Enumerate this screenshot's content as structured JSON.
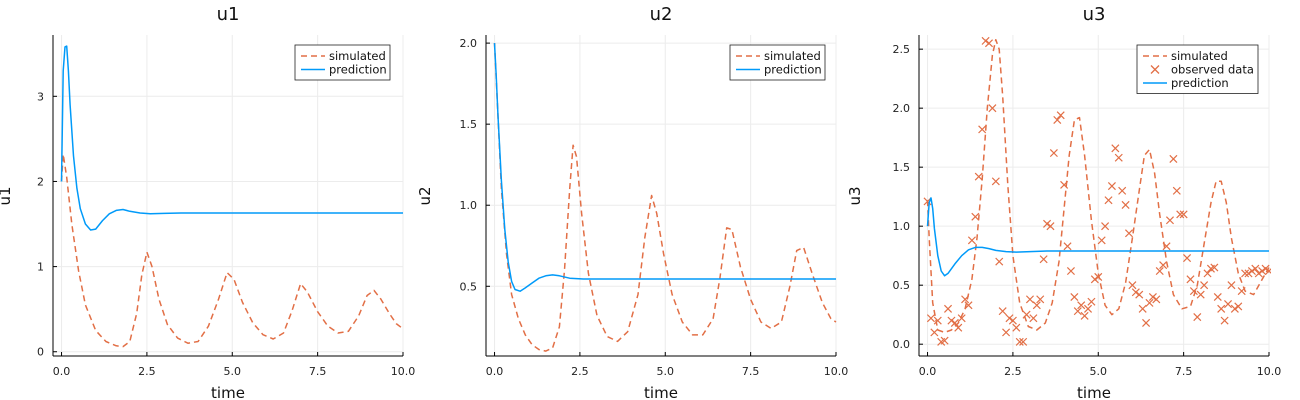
{
  "colors": {
    "simulated": "#e26f46",
    "prediction": "#009af9",
    "observed": "#e26f46",
    "grid": "#ececec",
    "axis": "#000000"
  },
  "chart_data": [
    {
      "type": "line",
      "title": "u1",
      "xlabel": "time",
      "ylabel": "u1",
      "xlim": [
        -0.25,
        10.0
      ],
      "ylim": [
        -0.05,
        3.72
      ],
      "xticks": [
        0.0,
        2.5,
        5.0,
        7.5,
        10.0
      ],
      "xtick_labels": [
        "0.0",
        "2.5",
        "5.0",
        "7.5",
        "10.0"
      ],
      "yticks": [
        0,
        1,
        2,
        3
      ],
      "ytick_labels": [
        "0",
        "1",
        "2",
        "3"
      ],
      "grid": true,
      "legend": "top-right",
      "legend_entries": [
        "simulated",
        "prediction"
      ],
      "series": [
        {
          "name": "simulated",
          "style": "dashed",
          "x": [
            0.0,
            0.05,
            0.15,
            0.3,
            0.5,
            0.7,
            1.0,
            1.3,
            1.6,
            1.8,
            2.0,
            2.2,
            2.35,
            2.5,
            2.65,
            2.85,
            3.1,
            3.4,
            3.7,
            4.0,
            4.3,
            4.6,
            4.85,
            5.05,
            5.3,
            5.6,
            5.9,
            6.2,
            6.5,
            6.75,
            7.0,
            7.2,
            7.5,
            7.8,
            8.1,
            8.4,
            8.7,
            8.95,
            9.15,
            9.35,
            9.6,
            9.8,
            10.0
          ],
          "y": [
            2.0,
            2.32,
            2.05,
            1.5,
            0.95,
            0.55,
            0.25,
            0.12,
            0.07,
            0.06,
            0.12,
            0.45,
            0.9,
            1.17,
            1.0,
            0.62,
            0.32,
            0.16,
            0.1,
            0.12,
            0.3,
            0.62,
            0.93,
            0.85,
            0.58,
            0.34,
            0.2,
            0.15,
            0.22,
            0.48,
            0.8,
            0.7,
            0.47,
            0.3,
            0.22,
            0.24,
            0.42,
            0.66,
            0.72,
            0.62,
            0.45,
            0.33,
            0.27
          ]
        },
        {
          "name": "prediction",
          "style": "solid",
          "x": [
            0.0,
            0.05,
            0.1,
            0.15,
            0.2,
            0.25,
            0.35,
            0.45,
            0.55,
            0.7,
            0.85,
            1.0,
            1.2,
            1.4,
            1.6,
            1.8,
            2.0,
            2.3,
            2.6,
            3.0,
            3.5,
            4.0,
            5.0,
            6.0,
            7.0,
            8.0,
            9.0,
            10.0
          ],
          "y": [
            2.0,
            3.3,
            3.58,
            3.59,
            3.3,
            2.9,
            2.3,
            1.92,
            1.68,
            1.5,
            1.43,
            1.44,
            1.54,
            1.62,
            1.66,
            1.67,
            1.65,
            1.63,
            1.62,
            1.625,
            1.63,
            1.63,
            1.63,
            1.63,
            1.63,
            1.63,
            1.63,
            1.63
          ]
        }
      ]
    },
    {
      "type": "line",
      "title": "u2",
      "xlabel": "time",
      "ylabel": "u2",
      "xlim": [
        -0.25,
        10.0
      ],
      "ylim": [
        0.07,
        2.05
      ],
      "xticks": [
        0.0,
        2.5,
        5.0,
        7.5,
        10.0
      ],
      "xtick_labels": [
        "0.0",
        "2.5",
        "5.0",
        "7.5",
        "10.0"
      ],
      "yticks": [
        0.5,
        1.0,
        1.5,
        2.0
      ],
      "ytick_labels": [
        "0.5",
        "1.0",
        "1.5",
        "2.0"
      ],
      "grid": true,
      "legend": "top-right",
      "legend_entries": [
        "simulated",
        "prediction"
      ],
      "series": [
        {
          "name": "simulated",
          "style": "dashed",
          "x": [
            0.0,
            0.1,
            0.2,
            0.35,
            0.5,
            0.7,
            0.9,
            1.1,
            1.3,
            1.5,
            1.7,
            1.9,
            2.05,
            2.2,
            2.3,
            2.4,
            2.55,
            2.75,
            3.0,
            3.3,
            3.6,
            3.9,
            4.2,
            4.4,
            4.6,
            4.75,
            4.95,
            5.2,
            5.5,
            5.8,
            6.1,
            6.4,
            6.6,
            6.8,
            6.95,
            7.2,
            7.5,
            7.8,
            8.1,
            8.4,
            8.65,
            8.85,
            9.05,
            9.3,
            9.6,
            9.85,
            10.0
          ],
          "y": [
            2.0,
            1.55,
            1.1,
            0.7,
            0.45,
            0.3,
            0.2,
            0.14,
            0.11,
            0.1,
            0.12,
            0.25,
            0.6,
            1.1,
            1.37,
            1.3,
            0.95,
            0.58,
            0.32,
            0.19,
            0.16,
            0.22,
            0.45,
            0.8,
            1.06,
            0.95,
            0.7,
            0.45,
            0.28,
            0.2,
            0.2,
            0.3,
            0.55,
            0.86,
            0.85,
            0.62,
            0.42,
            0.28,
            0.24,
            0.28,
            0.5,
            0.72,
            0.74,
            0.58,
            0.4,
            0.3,
            0.28
          ]
        },
        {
          "name": "prediction",
          "style": "solid",
          "x": [
            0.0,
            0.05,
            0.1,
            0.2,
            0.3,
            0.4,
            0.5,
            0.6,
            0.75,
            0.9,
            1.1,
            1.3,
            1.5,
            1.7,
            1.9,
            2.2,
            2.6,
            3.0,
            3.5,
            4.0,
            5.0,
            6.0,
            7.0,
            8.0,
            9.0,
            10.0
          ],
          "y": [
            2.0,
            1.8,
            1.55,
            1.15,
            0.85,
            0.65,
            0.53,
            0.48,
            0.47,
            0.49,
            0.52,
            0.55,
            0.565,
            0.57,
            0.565,
            0.55,
            0.545,
            0.545,
            0.545,
            0.545,
            0.545,
            0.545,
            0.545,
            0.545,
            0.545,
            0.545
          ]
        }
      ]
    },
    {
      "type": "line",
      "title": "u3",
      "xlabel": "time",
      "ylabel": "u3",
      "xlim": [
        -0.25,
        10.0
      ],
      "ylim": [
        -0.1,
        2.62
      ],
      "xticks": [
        0.0,
        2.5,
        5.0,
        7.5,
        10.0
      ],
      "xtick_labels": [
        "0.0",
        "2.5",
        "5.0",
        "7.5",
        "10.0"
      ],
      "yticks": [
        0.0,
        0.5,
        1.0,
        1.5,
        2.0,
        2.5
      ],
      "ytick_labels": [
        "0.0",
        "0.5",
        "1.0",
        "1.5",
        "2.0",
        "2.5"
      ],
      "grid": true,
      "legend": "top-right",
      "legend_entries": [
        "simulated",
        "observed data",
        "prediction"
      ],
      "series": [
        {
          "name": "simulated",
          "style": "dashed",
          "x": [
            0.0,
            0.05,
            0.15,
            0.3,
            0.5,
            0.7,
            0.9,
            1.1,
            1.3,
            1.45,
            1.6,
            1.75,
            1.9,
            2.0,
            2.1,
            2.2,
            2.35,
            2.5,
            2.7,
            2.95,
            3.2,
            3.45,
            3.65,
            3.85,
            4.0,
            4.15,
            4.3,
            4.45,
            4.6,
            4.8,
            5.0,
            5.2,
            5.4,
            5.6,
            5.8,
            6.0,
            6.2,
            6.35,
            6.5,
            6.65,
            6.8,
            7.0,
            7.2,
            7.45,
            7.7,
            7.9,
            8.1,
            8.3,
            8.45,
            8.6,
            8.75,
            8.9,
            9.1,
            9.3,
            9.55,
            9.8,
            10.0
          ],
          "y": [
            1.22,
            0.9,
            0.35,
            0.12,
            0.1,
            0.12,
            0.18,
            0.3,
            0.55,
            0.9,
            1.4,
            2.0,
            2.45,
            2.58,
            2.5,
            2.1,
            1.35,
            0.75,
            0.35,
            0.15,
            0.12,
            0.18,
            0.35,
            0.7,
            1.15,
            1.6,
            1.9,
            1.92,
            1.6,
            1.05,
            0.6,
            0.33,
            0.25,
            0.3,
            0.52,
            0.9,
            1.3,
            1.6,
            1.65,
            1.45,
            1.1,
            0.7,
            0.42,
            0.3,
            0.32,
            0.5,
            0.85,
            1.2,
            1.38,
            1.38,
            1.2,
            0.9,
            0.6,
            0.45,
            0.42,
            0.55,
            0.65
          ]
        },
        {
          "name": "observed data",
          "style": "markers",
          "x": [
            0.0,
            0.1,
            0.2,
            0.3,
            0.4,
            0.5,
            0.6,
            0.7,
            0.8,
            0.9,
            1.0,
            1.1,
            1.2,
            1.3,
            1.4,
            1.5,
            1.6,
            1.7,
            1.8,
            1.9,
            2.0,
            2.1,
            2.2,
            2.3,
            2.4,
            2.5,
            2.6,
            2.7,
            2.8,
            2.9,
            3.0,
            3.1,
            3.2,
            3.3,
            3.4,
            3.5,
            3.6,
            3.7,
            3.8,
            3.9,
            4.0,
            4.1,
            4.2,
            4.3,
            4.4,
            4.5,
            4.6,
            4.7,
            4.8,
            4.9,
            5.0,
            5.1,
            5.2,
            5.3,
            5.4,
            5.5,
            5.6,
            5.7,
            5.8,
            5.9,
            6.0,
            6.1,
            6.2,
            6.3,
            6.4,
            6.5,
            6.6,
            6.7,
            6.8,
            6.9,
            7.0,
            7.1,
            7.2,
            7.3,
            7.4,
            7.5,
            7.6,
            7.7,
            7.8,
            7.9,
            8.0,
            8.1,
            8.2,
            8.3,
            8.4,
            8.5,
            8.6,
            8.7,
            8.8,
            8.9,
            9.0,
            9.1,
            9.2,
            9.3,
            9.4,
            9.5,
            9.6,
            9.7,
            9.8,
            9.9,
            10.0
          ],
          "y": [
            1.21,
            0.22,
            0.1,
            0.2,
            0.02,
            0.03,
            0.3,
            0.2,
            0.18,
            0.14,
            0.22,
            0.38,
            0.33,
            0.88,
            1.08,
            1.42,
            1.82,
            2.57,
            2.55,
            2.0,
            1.38,
            0.7,
            0.28,
            0.1,
            0.22,
            0.2,
            0.14,
            0.02,
            0.02,
            0.25,
            0.38,
            0.22,
            0.33,
            0.38,
            0.72,
            1.02,
            1.0,
            1.62,
            1.9,
            1.94,
            1.35,
            0.83,
            0.62,
            0.4,
            0.28,
            0.33,
            0.24,
            0.3,
            0.36,
            0.55,
            0.57,
            0.88,
            1.0,
            1.22,
            1.34,
            1.66,
            1.58,
            1.3,
            1.18,
            0.94,
            0.5,
            0.44,
            0.42,
            0.3,
            0.18,
            0.35,
            0.4,
            0.38,
            0.62,
            0.67,
            0.83,
            1.05,
            1.57,
            1.3,
            1.1,
            1.1,
            0.73,
            0.55,
            0.45,
            0.23,
            0.42,
            0.5,
            0.6,
            0.64,
            0.65,
            0.4,
            0.3,
            0.2,
            0.34,
            0.5,
            0.3,
            0.32,
            0.45,
            0.6,
            0.6,
            0.62,
            0.64,
            0.6,
            0.62,
            0.64,
            0.62
          ]
        },
        {
          "name": "prediction",
          "style": "solid",
          "x": [
            0.0,
            0.05,
            0.1,
            0.15,
            0.2,
            0.3,
            0.4,
            0.5,
            0.6,
            0.8,
            1.0,
            1.2,
            1.4,
            1.6,
            1.8,
            2.0,
            2.3,
            2.6,
            3.0,
            3.5,
            4.0,
            5.0,
            6.0,
            7.0,
            8.0,
            9.0,
            10.0
          ],
          "y": [
            1.0,
            1.2,
            1.24,
            1.15,
            0.98,
            0.75,
            0.62,
            0.58,
            0.6,
            0.68,
            0.75,
            0.8,
            0.82,
            0.82,
            0.81,
            0.795,
            0.785,
            0.78,
            0.785,
            0.79,
            0.79,
            0.79,
            0.79,
            0.79,
            0.79,
            0.79,
            0.79
          ]
        }
      ]
    }
  ]
}
